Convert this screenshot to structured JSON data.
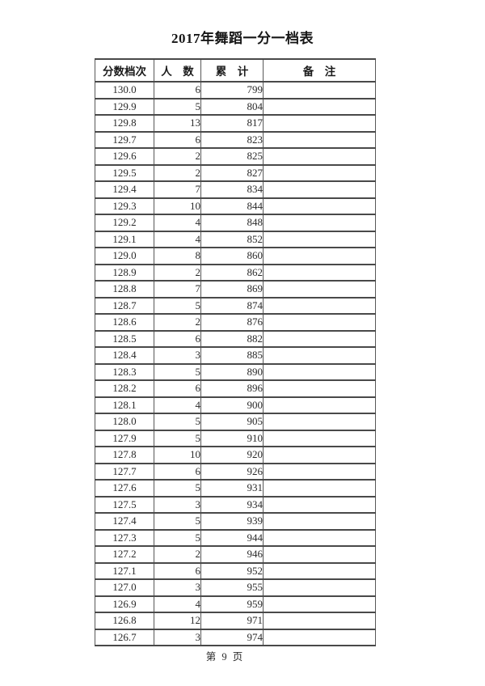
{
  "document": {
    "title": "2017年舞蹈一分一档表",
    "footer": {
      "page_label": "第 9 页"
    }
  },
  "table": {
    "headers": [
      "分数档次",
      "人　数",
      "累　计",
      "备　注"
    ],
    "column_names": [
      "score_bracket",
      "count",
      "cumulative",
      "remark"
    ],
    "rows": [
      [
        "130.0",
        "6",
        "799",
        ""
      ],
      [
        "129.9",
        "5",
        "804",
        ""
      ],
      [
        "129.8",
        "13",
        "817",
        ""
      ],
      [
        "129.7",
        "6",
        "823",
        ""
      ],
      [
        "129.6",
        "2",
        "825",
        ""
      ],
      [
        "129.5",
        "2",
        "827",
        ""
      ],
      [
        "129.4",
        "7",
        "834",
        ""
      ],
      [
        "129.3",
        "10",
        "844",
        ""
      ],
      [
        "129.2",
        "4",
        "848",
        ""
      ],
      [
        "129.1",
        "4",
        "852",
        ""
      ],
      [
        "129.0",
        "8",
        "860",
        ""
      ],
      [
        "128.9",
        "2",
        "862",
        ""
      ],
      [
        "128.8",
        "7",
        "869",
        ""
      ],
      [
        "128.7",
        "5",
        "874",
        ""
      ],
      [
        "128.6",
        "2",
        "876",
        ""
      ],
      [
        "128.5",
        "6",
        "882",
        ""
      ],
      [
        "128.4",
        "3",
        "885",
        ""
      ],
      [
        "128.3",
        "5",
        "890",
        ""
      ],
      [
        "128.2",
        "6",
        "896",
        ""
      ],
      [
        "128.1",
        "4",
        "900",
        ""
      ],
      [
        "128.0",
        "5",
        "905",
        ""
      ],
      [
        "127.9",
        "5",
        "910",
        ""
      ],
      [
        "127.8",
        "10",
        "920",
        ""
      ],
      [
        "127.7",
        "6",
        "926",
        ""
      ],
      [
        "127.6",
        "5",
        "931",
        ""
      ],
      [
        "127.5",
        "3",
        "934",
        ""
      ],
      [
        "127.4",
        "5",
        "939",
        ""
      ],
      [
        "127.3",
        "5",
        "944",
        ""
      ],
      [
        "127.2",
        "2",
        "946",
        ""
      ],
      [
        "127.1",
        "6",
        "952",
        ""
      ],
      [
        "127.0",
        "3",
        "955",
        ""
      ],
      [
        "126.9",
        "4",
        "959",
        ""
      ],
      [
        "126.8",
        "12",
        "971",
        ""
      ],
      [
        "126.7",
        "3",
        "974",
        ""
      ]
    ]
  }
}
